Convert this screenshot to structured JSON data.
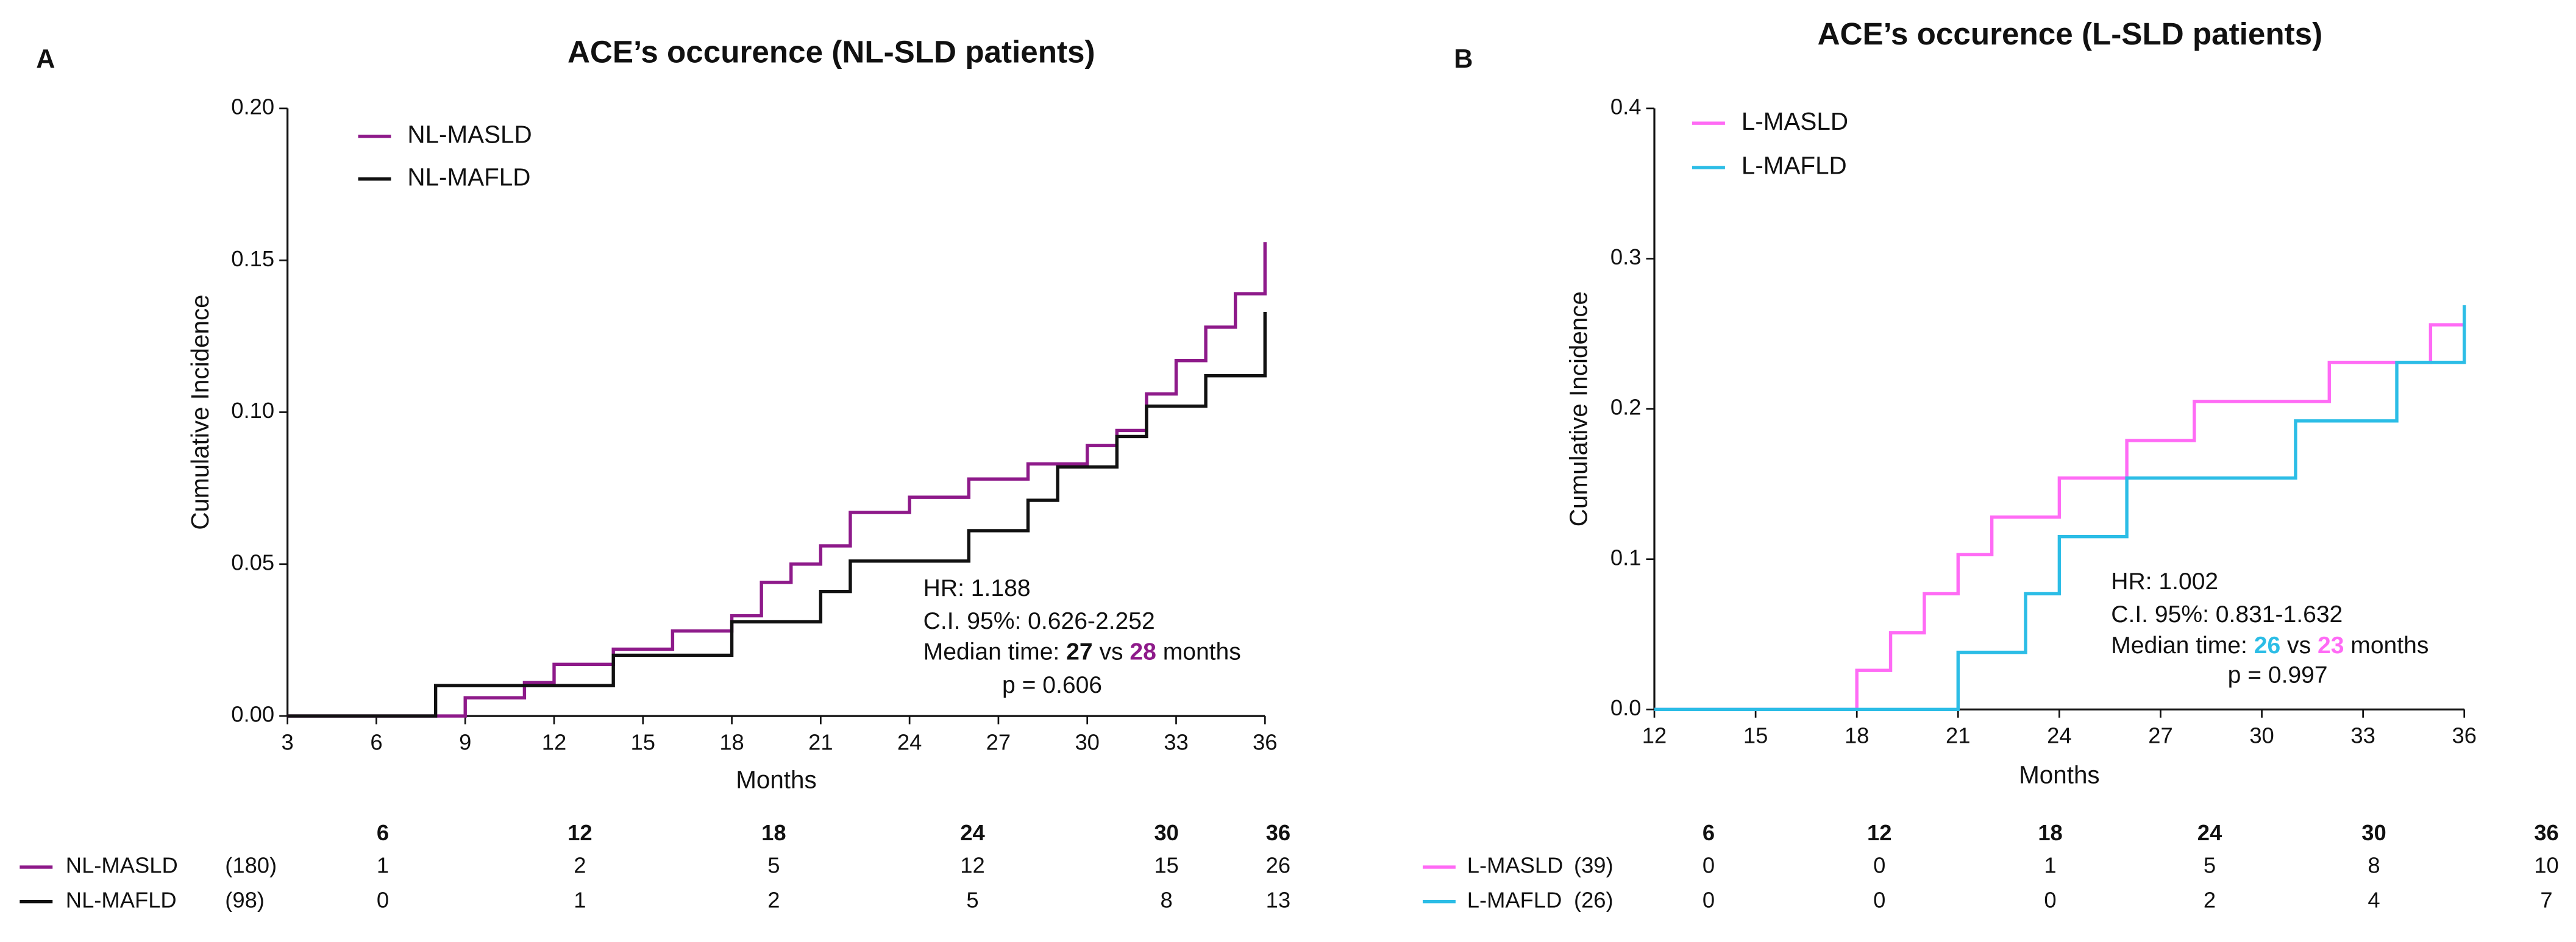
{
  "chart_data": [
    {
      "type": "step",
      "panel": "A",
      "title": "ACE’s occurence (NL-SLD patients)",
      "x_label": "Months",
      "y_label": "Cumulative Incidence",
      "xlim": [
        3,
        36
      ],
      "xticks": [
        3,
        6,
        9,
        12,
        15,
        18,
        21,
        24,
        27,
        30,
        33,
        36
      ],
      "ylim": [
        0,
        0.2
      ],
      "yticks": [
        {
          "value": 0,
          "label": "0.00"
        },
        {
          "value": 0.05,
          "label": "0.05"
        },
        {
          "value": 0.1,
          "label": "0.10"
        },
        {
          "value": 0.15,
          "label": "0.15"
        },
        {
          "value": 0.2,
          "label": "0.20"
        }
      ],
      "series": [
        {
          "name": "NL-MASLD",
          "color": "#8e1a8a",
          "x": [
            3,
            9,
            11,
            12,
            14,
            16,
            18,
            19,
            20,
            21,
            22,
            24,
            26,
            28,
            30,
            31,
            32,
            33,
            34,
            35,
            36
          ],
          "values": [
            0,
            0.006,
            0.011,
            0.017,
            0.022,
            0.028,
            0.033,
            0.044,
            0.05,
            0.056,
            0.067,
            0.072,
            0.078,
            0.083,
            0.089,
            0.094,
            0.106,
            0.117,
            0.128,
            0.139,
            0.156
          ]
        },
        {
          "name": "NL-MAFLD",
          "color": "#111111",
          "x": [
            3,
            8,
            14,
            18,
            21,
            22,
            26,
            28,
            29,
            31,
            32,
            34,
            36
          ],
          "values": [
            0,
            0.01,
            0.02,
            0.031,
            0.041,
            0.051,
            0.061,
            0.071,
            0.082,
            0.092,
            0.102,
            0.112,
            0.133
          ]
        }
      ],
      "annotations": [
        "HR: 1.188",
        "C.I. 95%: 0.626-2.252"
      ],
      "median": [
        "Median time: ",
        "27",
        " vs ",
        "28",
        " months"
      ],
      "p_value": "p = 0.606",
      "risk_table": {
        "times": [
          6,
          12,
          18,
          24,
          30,
          36
        ],
        "rows": [
          {
            "name": "NL-MASLD",
            "n": "(180)",
            "counts": [
              1,
              2,
              5,
              12,
              15,
              26
            ]
          },
          {
            "name": "NL-MAFLD",
            "n": "(98)",
            "counts": [
              0,
              1,
              2,
              5,
              8,
              13
            ]
          }
        ]
      }
    },
    {
      "type": "step",
      "panel": "B",
      "title": "ACE’s occurence (L-SLD patients)",
      "x_label": "Months",
      "y_label": "Cumulative Incidence",
      "xlim": [
        12,
        36
      ],
      "xticks": [
        12,
        15,
        18,
        21,
        24,
        27,
        30,
        33,
        36
      ],
      "ylim": [
        0,
        0.4
      ],
      "yticks": [
        {
          "value": 0,
          "label": "0.0"
        },
        {
          "value": 0.1,
          "label": "0.1"
        },
        {
          "value": 0.2,
          "label": "0.2"
        },
        {
          "value": 0.3,
          "label": "0.3"
        },
        {
          "value": 0.4,
          "label": "0.4"
        }
      ],
      "series": [
        {
          "name": "L-MASLD",
          "color": "#ff6bf5",
          "x": [
            12,
            18,
            19,
            20,
            21,
            22,
            24,
            26,
            28,
            32,
            35,
            36
          ],
          "values": [
            0,
            0.026,
            0.051,
            0.077,
            0.103,
            0.128,
            0.154,
            0.179,
            0.205,
            0.231,
            0.256,
            0.256
          ]
        },
        {
          "name": "L-MAFLD",
          "color": "#2cbde6",
          "x": [
            12,
            21,
            23,
            24,
            26,
            31,
            34,
            36
          ],
          "values": [
            0,
            0.038,
            0.077,
            0.115,
            0.154,
            0.192,
            0.231,
            0.269
          ]
        }
      ],
      "annotations": [
        "HR: 1.002",
        "C.I. 95%: 0.831-1.632"
      ],
      "median": [
        "Median time: ",
        "26",
        " vs ",
        "23",
        " months"
      ],
      "p_value": "p = 0.997",
      "risk_table": {
        "times": [
          6,
          12,
          18,
          24,
          30,
          36
        ],
        "rows": [
          {
            "name": "L-MASLD",
            "n": "(39)",
            "counts": [
              0,
              0,
              1,
              5,
              8,
              10
            ]
          },
          {
            "name": "L-MAFLD",
            "n": "(26)",
            "counts": [
              0,
              0,
              0,
              2,
              4,
              7
            ]
          }
        ]
      }
    }
  ]
}
